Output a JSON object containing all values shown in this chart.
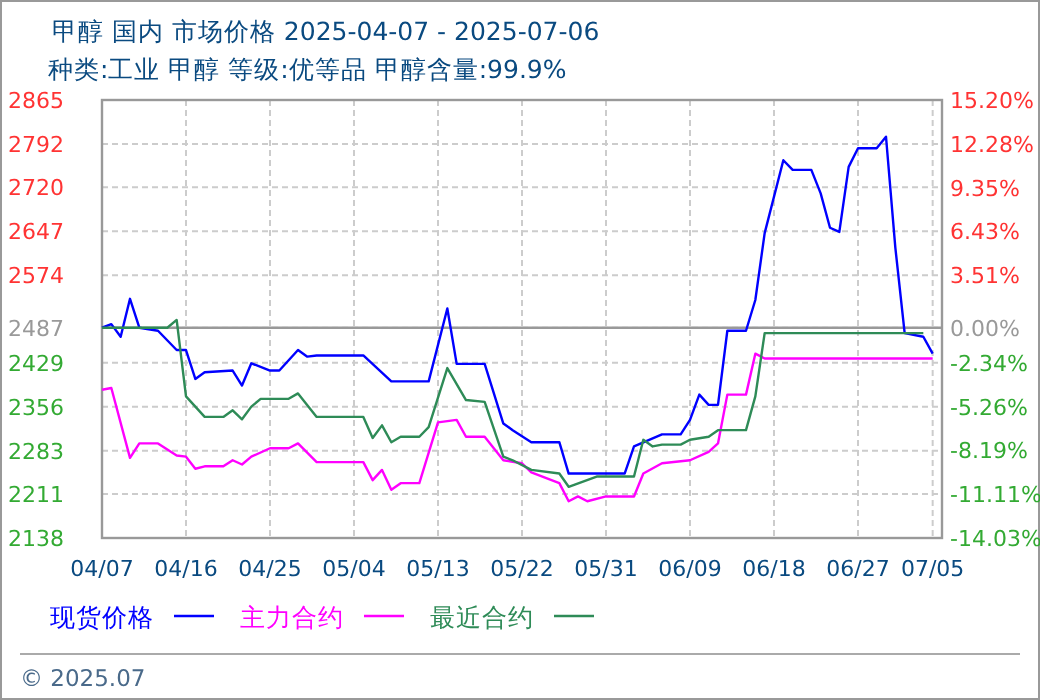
{
  "chart_data": {
    "type": "line",
    "title": "甲醇  国内  市场价格  2025-04-07 - 2025-07-06",
    "subtitle": "种类:工业 甲醇  等级:优等品  甲醇含量:99.9%",
    "xlim": [
      "2025-04-07",
      "2025-07-06"
    ],
    "xticks": [
      {
        "value": "2025-04-07",
        "label": "04/07"
      },
      {
        "value": "2025-04-16",
        "label": "04/16"
      },
      {
        "value": "2025-04-25",
        "label": "04/25"
      },
      {
        "value": "2025-05-04",
        "label": "05/04"
      },
      {
        "value": "2025-05-13",
        "label": "05/13"
      },
      {
        "value": "2025-05-22",
        "label": "05/22"
      },
      {
        "value": "2025-05-31",
        "label": "05/31"
      },
      {
        "value": "2025-06-09",
        "label": "06/09"
      },
      {
        "value": "2025-06-18",
        "label": "06/18"
      },
      {
        "value": "2025-06-27",
        "label": "06/27"
      },
      {
        "value": "2025-07-05",
        "label": "07/05"
      }
    ],
    "ylim": [
      2138,
      2865
    ],
    "yticks": [
      2138,
      2211,
      2283,
      2356,
      2429,
      2487,
      2574,
      2647,
      2720,
      2792,
      2865
    ],
    "y2lim": [
      -14.03,
      15.2
    ],
    "y2ticks": [
      {
        "value": -14.03,
        "label": "-14.03%"
      },
      {
        "value": -11.11,
        "label": "-11.11%"
      },
      {
        "value": -8.19,
        "label": "-8.19%"
      },
      {
        "value": -5.26,
        "label": "-5.26%"
      },
      {
        "value": -2.34,
        "label": "-2.34%"
      },
      {
        "value": 0,
        "label": "0.00%"
      },
      {
        "value": 3.51,
        "label": "3.51%"
      },
      {
        "value": 6.43,
        "label": "6.43%"
      },
      {
        "value": 9.35,
        "label": "9.35%"
      },
      {
        "value": 12.28,
        "label": "12.28%"
      },
      {
        "value": 15.2,
        "label": "15.20%"
      }
    ],
    "ref_lines": [
      {
        "axis": "y",
        "value": 2487,
        "color": "#999999"
      }
    ],
    "grid": true,
    "legend": "bottom",
    "marker": "none",
    "line_style": "solid",
    "annotations": [
      "© 2025.07"
    ],
    "series": [
      {
        "name": "现货价格",
        "color": "#0000ff",
        "x": [
          "2025-04-07",
          "2025-04-08",
          "2025-04-09",
          "2025-04-10",
          "2025-04-11",
          "2025-04-13",
          "2025-04-15",
          "2025-04-16",
          "2025-04-17",
          "2025-04-18",
          "2025-04-21",
          "2025-04-22",
          "2025-04-23",
          "2025-04-25",
          "2025-04-26",
          "2025-04-28",
          "2025-04-29",
          "2025-04-30",
          "2025-05-05",
          "2025-05-08",
          "2025-05-12",
          "2025-05-14",
          "2025-05-15",
          "2025-05-18",
          "2025-05-20",
          "2025-05-21",
          "2025-05-23",
          "2025-05-26",
          "2025-05-27",
          "2025-06-02",
          "2025-06-03",
          "2025-06-06",
          "2025-06-08",
          "2025-06-09",
          "2025-06-10",
          "2025-06-11",
          "2025-06-12",
          "2025-06-13",
          "2025-06-15",
          "2025-06-16",
          "2025-06-17",
          "2025-06-19",
          "2025-06-20",
          "2025-06-22",
          "2025-06-23",
          "2025-06-24",
          "2025-06-25",
          "2025-06-26",
          "2025-06-27",
          "2025-06-29",
          "2025-06-30",
          "2025-07-01",
          "2025-07-02",
          "2025-07-04",
          "2025-07-05"
        ],
        "values": [
          2487,
          2493,
          2472,
          2535,
          2487,
          2482,
          2450,
          2450,
          2402,
          2413,
          2416,
          2391,
          2428,
          2416,
          2416,
          2450,
          2439,
          2441,
          2441,
          2398,
          2398,
          2519,
          2427,
          2427,
          2328,
          2317,
          2297,
          2297,
          2245,
          2245,
          2290,
          2310,
          2310,
          2334,
          2376,
          2359,
          2359,
          2482,
          2482,
          2533,
          2644,
          2765,
          2749,
          2749,
          2710,
          2653,
          2646,
          2754,
          2785,
          2785,
          2804,
          2620,
          2478,
          2472,
          2444
        ]
      },
      {
        "name": "主力合约",
        "color": "#ff00ff",
        "x": [
          "2025-04-07",
          "2025-04-08",
          "2025-04-10",
          "2025-04-11",
          "2025-04-13",
          "2025-04-15",
          "2025-04-16",
          "2025-04-17",
          "2025-04-18",
          "2025-04-20",
          "2025-04-21",
          "2025-04-22",
          "2025-04-23",
          "2025-04-25",
          "2025-04-27",
          "2025-04-28",
          "2025-04-30",
          "2025-05-05",
          "2025-05-06",
          "2025-05-07",
          "2025-05-08",
          "2025-05-09",
          "2025-05-11",
          "2025-05-13",
          "2025-05-15",
          "2025-05-16",
          "2025-05-18",
          "2025-05-20",
          "2025-05-22",
          "2025-05-23",
          "2025-05-26",
          "2025-05-27",
          "2025-05-28",
          "2025-05-29",
          "2025-05-31",
          "2025-06-03",
          "2025-06-04",
          "2025-06-06",
          "2025-06-09",
          "2025-06-11",
          "2025-06-12",
          "2025-06-13",
          "2025-06-15",
          "2025-06-16",
          "2025-06-17",
          "2025-07-05"
        ],
        "values": [
          2384,
          2387,
          2271,
          2295,
          2295,
          2275,
          2273,
          2253,
          2257,
          2257,
          2267,
          2260,
          2273,
          2287,
          2287,
          2295,
          2264,
          2264,
          2234,
          2251,
          2218,
          2229,
          2229,
          2330,
          2334,
          2306,
          2306,
          2267,
          2262,
          2247,
          2229,
          2199,
          2207,
          2199,
          2207,
          2207,
          2245,
          2262,
          2267,
          2281,
          2295,
          2376,
          2376,
          2444,
          2436,
          2436
        ]
      },
      {
        "name": "最近合约",
        "color": "#2e8b57",
        "x": [
          "2025-04-07",
          "2025-04-14",
          "2025-04-15",
          "2025-04-16",
          "2025-04-18",
          "2025-04-20",
          "2025-04-21",
          "2025-04-22",
          "2025-04-23",
          "2025-04-24",
          "2025-04-27",
          "2025-04-28",
          "2025-04-30",
          "2025-05-05",
          "2025-05-06",
          "2025-05-07",
          "2025-05-08",
          "2025-05-09",
          "2025-05-11",
          "2025-05-12",
          "2025-05-14",
          "2025-05-16",
          "2025-05-18",
          "2025-05-20",
          "2025-05-21",
          "2025-05-23",
          "2025-05-26",
          "2025-05-27",
          "2025-05-30",
          "2025-06-03",
          "2025-06-04",
          "2025-06-05",
          "2025-06-06",
          "2025-06-08",
          "2025-06-09",
          "2025-06-11",
          "2025-06-12",
          "2025-06-15",
          "2025-06-16",
          "2025-06-17",
          "2025-07-04"
        ],
        "values": [
          2487,
          2487,
          2500,
          2373,
          2339,
          2339,
          2350,
          2335,
          2356,
          2369,
          2369,
          2378,
          2339,
          2339,
          2304,
          2325,
          2297,
          2306,
          2306,
          2322,
          2420,
          2367,
          2364,
          2273,
          2267,
          2251,
          2245,
          2223,
          2240,
          2240,
          2301,
          2290,
          2293,
          2293,
          2301,
          2306,
          2317,
          2317,
          2373,
          2478,
          2478
        ]
      }
    ]
  }
}
